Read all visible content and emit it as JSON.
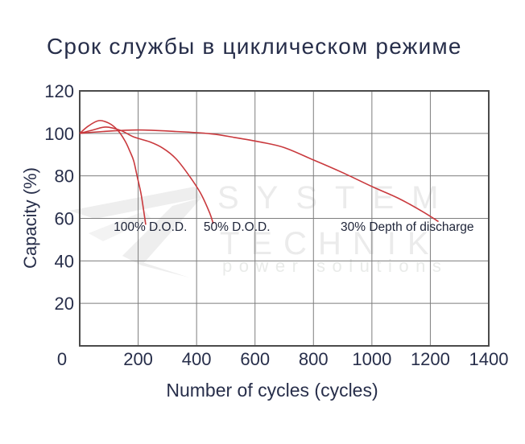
{
  "page": {
    "background": "#ffffff"
  },
  "chart_data": {
    "type": "line",
    "title": "Срок службы в циклическом режиме",
    "xlabel": "Number of cycles (cycles)",
    "ylabel": "Capacity (%)",
    "xlim": [
      0,
      1400
    ],
    "ylim": [
      0,
      120
    ],
    "x_ticks": [
      0,
      200,
      400,
      600,
      800,
      1000,
      1200,
      1400
    ],
    "y_ticks": [
      0,
      20,
      40,
      60,
      80,
      100,
      120
    ],
    "grid": true,
    "legend_position": "none",
    "series": [
      {
        "name": "100% D.O.D.",
        "x": [
          0,
          30,
          65,
          100,
          130,
          155,
          172,
          185,
          197,
          210,
          219,
          226
        ],
        "y": [
          100,
          103.5,
          106,
          104.8,
          101.5,
          96.5,
          91.5,
          87,
          79.5,
          71.5,
          63.5,
          57
        ]
      },
      {
        "name": "50% D.O.D.",
        "x": [
          0,
          45,
          90,
          140,
          185,
          240,
          285,
          330,
          375,
          415,
          445,
          457
        ],
        "y": [
          100,
          101.6,
          103,
          101.4,
          98.3,
          96,
          93,
          88,
          80,
          71.5,
          62.5,
          57.5
        ]
      },
      {
        "name": "30% Depth of discharge",
        "x": [
          0,
          80,
          200,
          330,
          450,
          530,
          620,
          700,
          800,
          900,
          1000,
          1090,
          1170,
          1228
        ],
        "y": [
          100,
          100.9,
          101.6,
          100.9,
          99.8,
          98.1,
          95.9,
          93.3,
          87.5,
          81.5,
          75,
          69.5,
          63.5,
          58.5
        ]
      }
    ],
    "annotations": [
      {
        "text": "100% D.O.D.",
        "x": 116,
        "y": 56
      },
      {
        "text": "50% D.O.D.",
        "x": 424,
        "y": 56
      },
      {
        "text": "30% Depth of discharge",
        "x": 893,
        "y": 56
      }
    ],
    "line_color": "#c9393d",
    "grid_color": "#7e7e7e",
    "border_color": "#4b4b4b",
    "text_color": "#272e4a",
    "annotation_color": "#20263a"
  },
  "watermark": {
    "line1": "SYSTEM",
    "line2": "TECHNIK",
    "line3": "power solutions",
    "color": "#ebebeb"
  }
}
